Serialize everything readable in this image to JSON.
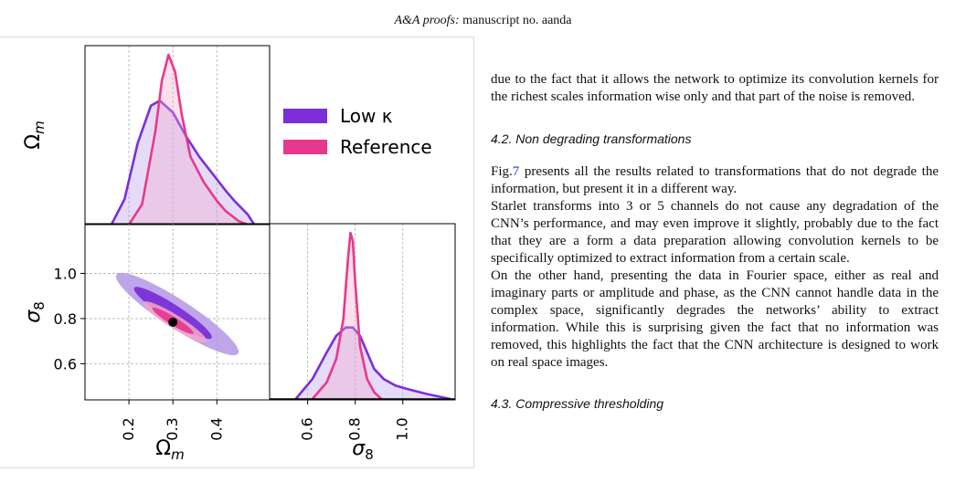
{
  "header": {
    "journal": "A&A proofs:",
    "rest": "manuscript no. aanda"
  },
  "figure": {
    "legend": [
      "Low κ",
      "Reference"
    ],
    "legend_symbol": "κ",
    "colors": {
      "low_kappa": "#7b2fd8",
      "reference": "#e8388e",
      "low_fill": "#b497e8",
      "ref_fill": "#f3a6cc"
    },
    "axis_sym": {
      "omega": "Ω",
      "omega_sub": "m",
      "sigma": "σ",
      "sigma_sub": "8"
    },
    "marker": {
      "omega_m": 0.3,
      "sigma_8": 0.784
    }
  },
  "chart_data": [
    {
      "type": "line",
      "panel": "marginal Ω_m",
      "ylabel": "Ω_m",
      "xlim": [
        0.1,
        0.52
      ],
      "series": [
        {
          "name": "Low κ",
          "x": [
            0.16,
            0.19,
            0.22,
            0.25,
            0.27,
            0.3,
            0.33,
            0.36,
            0.39,
            0.42,
            0.44,
            0.47,
            0.485
          ],
          "y": [
            0.0,
            0.15,
            0.48,
            0.7,
            0.73,
            0.66,
            0.52,
            0.4,
            0.3,
            0.2,
            0.14,
            0.06,
            0.0
          ]
        },
        {
          "name": "Reference",
          "x": [
            0.2,
            0.23,
            0.26,
            0.275,
            0.29,
            0.305,
            0.32,
            0.34,
            0.37,
            0.4,
            0.42,
            0.45,
            0.47
          ],
          "y": [
            0.0,
            0.12,
            0.55,
            0.85,
            1.0,
            0.9,
            0.65,
            0.4,
            0.25,
            0.14,
            0.08,
            0.02,
            0.0
          ]
        }
      ]
    },
    {
      "type": "line",
      "panel": "marginal σ_8",
      "xlabel": "σ_8",
      "xlim": [
        0.44,
        1.22
      ],
      "xticks": [
        0.6,
        0.8,
        1.0
      ],
      "xtick_labels": [
        "0.6",
        "0.8",
        "1.0"
      ],
      "series": [
        {
          "name": "Low κ",
          "x": [
            0.55,
            0.62,
            0.68,
            0.72,
            0.76,
            0.79,
            0.82,
            0.85,
            0.88,
            0.92,
            0.97,
            1.02,
            1.1,
            1.2
          ],
          "y": [
            0.0,
            0.12,
            0.28,
            0.38,
            0.43,
            0.43,
            0.38,
            0.28,
            0.18,
            0.12,
            0.08,
            0.06,
            0.03,
            0.0
          ]
        },
        {
          "name": "Reference",
          "x": [
            0.62,
            0.68,
            0.72,
            0.75,
            0.77,
            0.78,
            0.79,
            0.8,
            0.82,
            0.85,
            0.88,
            0.91
          ],
          "y": [
            0.0,
            0.1,
            0.24,
            0.48,
            0.85,
            1.0,
            0.95,
            0.7,
            0.32,
            0.12,
            0.04,
            0.0
          ]
        }
      ]
    },
    {
      "type": "scatter",
      "panel": "joint Ω_m vs σ_8",
      "xlabel": "Ω_m",
      "ylabel": "σ_8",
      "xlim": [
        0.1,
        0.52
      ],
      "ylim": [
        0.44,
        1.22
      ],
      "xticks": [
        0.2,
        0.3,
        0.4
      ],
      "xtick_labels": [
        "0.2",
        "0.3",
        "0.4"
      ],
      "yticks": [
        0.6,
        0.8,
        1.0
      ],
      "ytick_labels": [
        "0.6",
        "0.8",
        "1.0"
      ],
      "grid": true,
      "contours": [
        {
          "name": "Low κ",
          "level": "outer",
          "center": [
            0.31,
            0.82
          ],
          "semi_axes": [
            0.165,
            0.063
          ],
          "angle_deg": 33
        },
        {
          "name": "Low κ",
          "level": "inner",
          "center": [
            0.3,
            0.825
          ],
          "semi_axes": [
            0.105,
            0.036
          ],
          "angle_deg": 33
        },
        {
          "name": "Reference",
          "level": "outer",
          "center": [
            0.305,
            0.785
          ],
          "semi_axes": [
            0.085,
            0.03
          ],
          "angle_deg": 32
        },
        {
          "name": "Reference",
          "level": "inner",
          "center": [
            0.3,
            0.79
          ],
          "semi_axes": [
            0.055,
            0.018
          ],
          "angle_deg": 32
        }
      ],
      "point": {
        "x": 0.3,
        "y": 0.784
      }
    }
  ],
  "text": {
    "p1": "due to the fact that it allows the network to optimize its convolution kernels for the richest scales information wise only and that part of the noise is removed.",
    "section": "4.2. Non degrading transformations",
    "p2_a": "Fig.",
    "p2_ref": "7",
    "p2_b": " presents all the results related to transformations that do not degrade the information, but present it in a different way.",
    "p3": "Starlet transforms into 3 or 5 channels do not cause any degradation of the CNN’s performance, and may even improve it slightly, probably due to the fact that they are a form a data preparation allowing convolution kernels to be specifically optimized to extract information from a certain scale.",
    "p4": "On the other hand, presenting the data in Fourier space, either as real and imaginary parts or amplitude and phase, as the CNN cannot handle data in the complex space, significantly degrades the networks’ ability to extract information. While this is surprising given the fact that no information was removed, this highlights the fact that the CNN architecture is designed to work on real space images.",
    "next_section": "4.3. Compressive thresholding"
  }
}
